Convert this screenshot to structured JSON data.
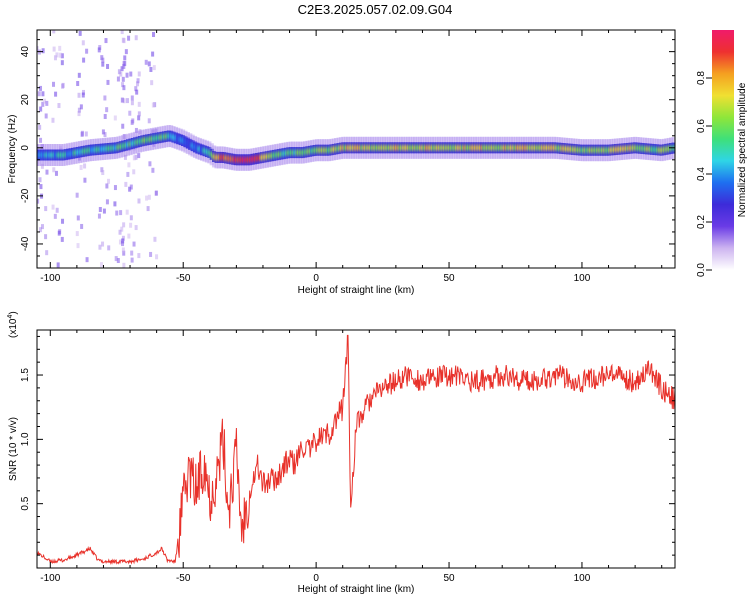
{
  "title": "C2E3.2025.057.02.09.G04",
  "colors": {
    "snr_line": "#e8312a",
    "axes": "#000000",
    "colormap": [
      "#ffffff",
      "#cdb4f0",
      "#6a3be6",
      "#3d2bd9",
      "#1e6ff0",
      "#2fd5e6",
      "#3ee07a",
      "#8fe63a",
      "#f0e032",
      "#f5a020",
      "#ee3030",
      "#f01a6a"
    ]
  },
  "chart_data": [
    {
      "type": "heatmap",
      "xlabel": "Height of straight line (km)",
      "ylabel": "Frequency (Hz)",
      "xlim": [
        -105,
        135
      ],
      "ylim": [
        -50,
        49
      ],
      "xticks": [
        -100,
        -50,
        0,
        50,
        100
      ],
      "xtick_labels": [
        "-100",
        "-50",
        "0",
        "50",
        "100"
      ],
      "yticks": [
        -40,
        -20,
        0,
        20,
        40
      ],
      "ytick_labels": [
        "-40",
        "-20",
        "0",
        "20",
        "40"
      ],
      "colorbar": {
        "label": "Normalized spectral amplitude",
        "range": [
          0,
          1
        ],
        "ticks": [
          0,
          0.2,
          0.4,
          0.6,
          0.8
        ],
        "tick_labels": [
          "0.0",
          "0.2",
          "0.4",
          "0.6",
          "0.8"
        ]
      },
      "ridge": {
        "x": [
          -105,
          -95,
          -85,
          -75,
          -65,
          -60,
          -55,
          -50,
          -45,
          -40,
          -38,
          -35,
          -30,
          -25,
          -20,
          -15,
          -10,
          -5,
          0,
          5,
          10,
          20,
          30,
          40,
          50,
          60,
          70,
          80,
          90,
          100,
          110,
          120,
          130,
          135
        ],
        "freq": [
          -3,
          -3,
          -1,
          0,
          3,
          4,
          5,
          3,
          0,
          -2,
          -4,
          -4,
          -5,
          -5,
          -4,
          -3,
          -2,
          -2,
          -1,
          -1,
          0,
          0,
          0,
          0,
          0,
          0,
          0,
          0,
          0,
          -1,
          -1,
          0,
          -1,
          0
        ],
        "amplitude": [
          0.45,
          0.45,
          0.5,
          0.5,
          0.55,
          0.6,
          0.5,
          0.35,
          0.4,
          0.45,
          0.7,
          0.9,
          0.95,
          0.95,
          0.8,
          0.55,
          0.5,
          0.55,
          0.6,
          0.65,
          0.7,
          0.7,
          0.72,
          0.7,
          0.7,
          0.72,
          0.7,
          0.72,
          0.7,
          0.65,
          0.68,
          0.7,
          0.6,
          0.55
        ]
      },
      "noise_clusters_x": [
        -103,
        -97,
        -88,
        -80,
        -74,
        -71,
        -68,
        -62
      ]
    },
    {
      "type": "line",
      "xlabel": "Height of straight line (km)",
      "ylabel": "SNR (10 * v/v)",
      "yscale_label": "(x10",
      "yscale_exponent": "4",
      "xlim": [
        -105,
        135
      ],
      "ylim": [
        0,
        1.85
      ],
      "xticks": [
        -100,
        -50,
        0,
        50,
        100
      ],
      "xtick_labels": [
        "-100",
        "-50",
        "0",
        "50",
        "100"
      ],
      "yticks": [
        0.5,
        1.0,
        1.5
      ],
      "ytick_labels": [
        "0.5",
        "1.0",
        "1.5"
      ],
      "series": [
        {
          "x": [
            -105,
            -100,
            -95,
            -90,
            -85,
            -82,
            -80,
            -75,
            -70,
            -65,
            -60,
            -58,
            -56,
            -53,
            -50,
            -48,
            -45,
            -42,
            -40,
            -37,
            -35,
            -33,
            -30,
            -28,
            -25,
            -22,
            -20,
            -15,
            -10,
            -8,
            -5,
            -2,
            0,
            5,
            10,
            12,
            13,
            15,
            20,
            25,
            30,
            35,
            40,
            50,
            60,
            70,
            80,
            90,
            100,
            110,
            120,
            125,
            130,
            135
          ],
          "y": [
            0.12,
            0.05,
            0.06,
            0.1,
            0.15,
            0.06,
            0.05,
            0.05,
            0.05,
            0.07,
            0.12,
            0.15,
            0.06,
            0.05,
            0.5,
            0.75,
            0.6,
            0.85,
            0.55,
            0.75,
            1.0,
            0.45,
            0.9,
            0.3,
            0.6,
            0.8,
            0.65,
            0.7,
            0.85,
            0.8,
            0.95,
            0.9,
            1.0,
            1.05,
            1.25,
            1.8,
            0.45,
            1.1,
            1.3,
            1.4,
            1.45,
            1.5,
            1.45,
            1.5,
            1.45,
            1.5,
            1.45,
            1.5,
            1.45,
            1.5,
            1.45,
            1.55,
            1.4,
            1.3
          ]
        }
      ]
    }
  ]
}
